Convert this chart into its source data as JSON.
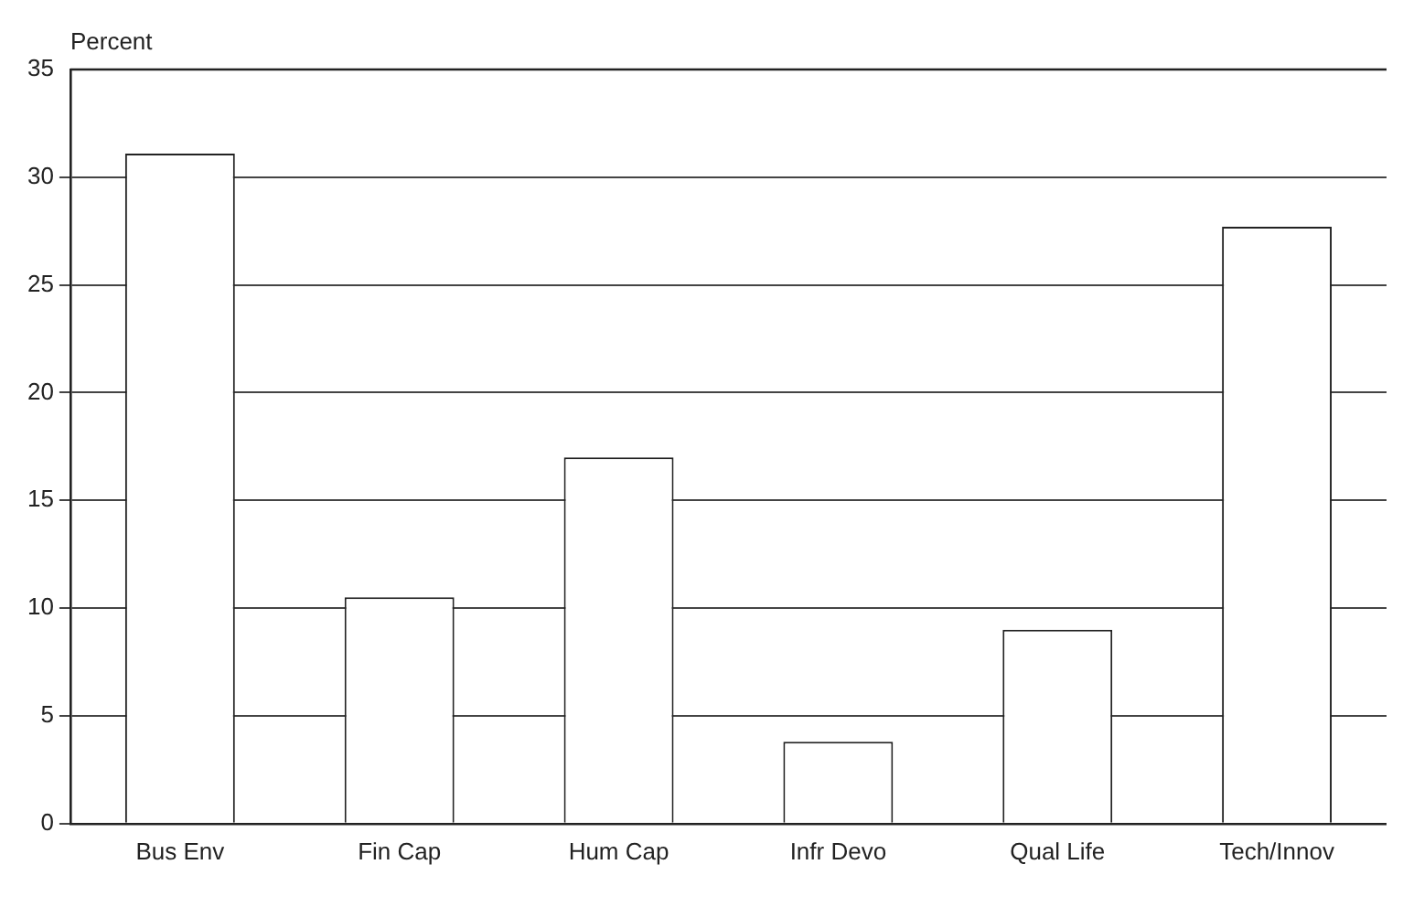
{
  "chart_data": {
    "type": "bar",
    "ylabel": "Percent",
    "categories": [
      "Bus Env",
      "Fin Cap",
      "Hum Cap",
      "Infr Devo",
      "Qual Life",
      "Tech/Innov"
    ],
    "values": [
      31.1,
      10.5,
      17.0,
      3.8,
      9.0,
      27.7
    ],
    "color": "#ffffff",
    "ylim": [
      0,
      35
    ],
    "yticks": [
      0,
      5,
      10,
      15,
      20,
      25,
      30,
      35
    ],
    "grid": "y",
    "legend": false
  }
}
